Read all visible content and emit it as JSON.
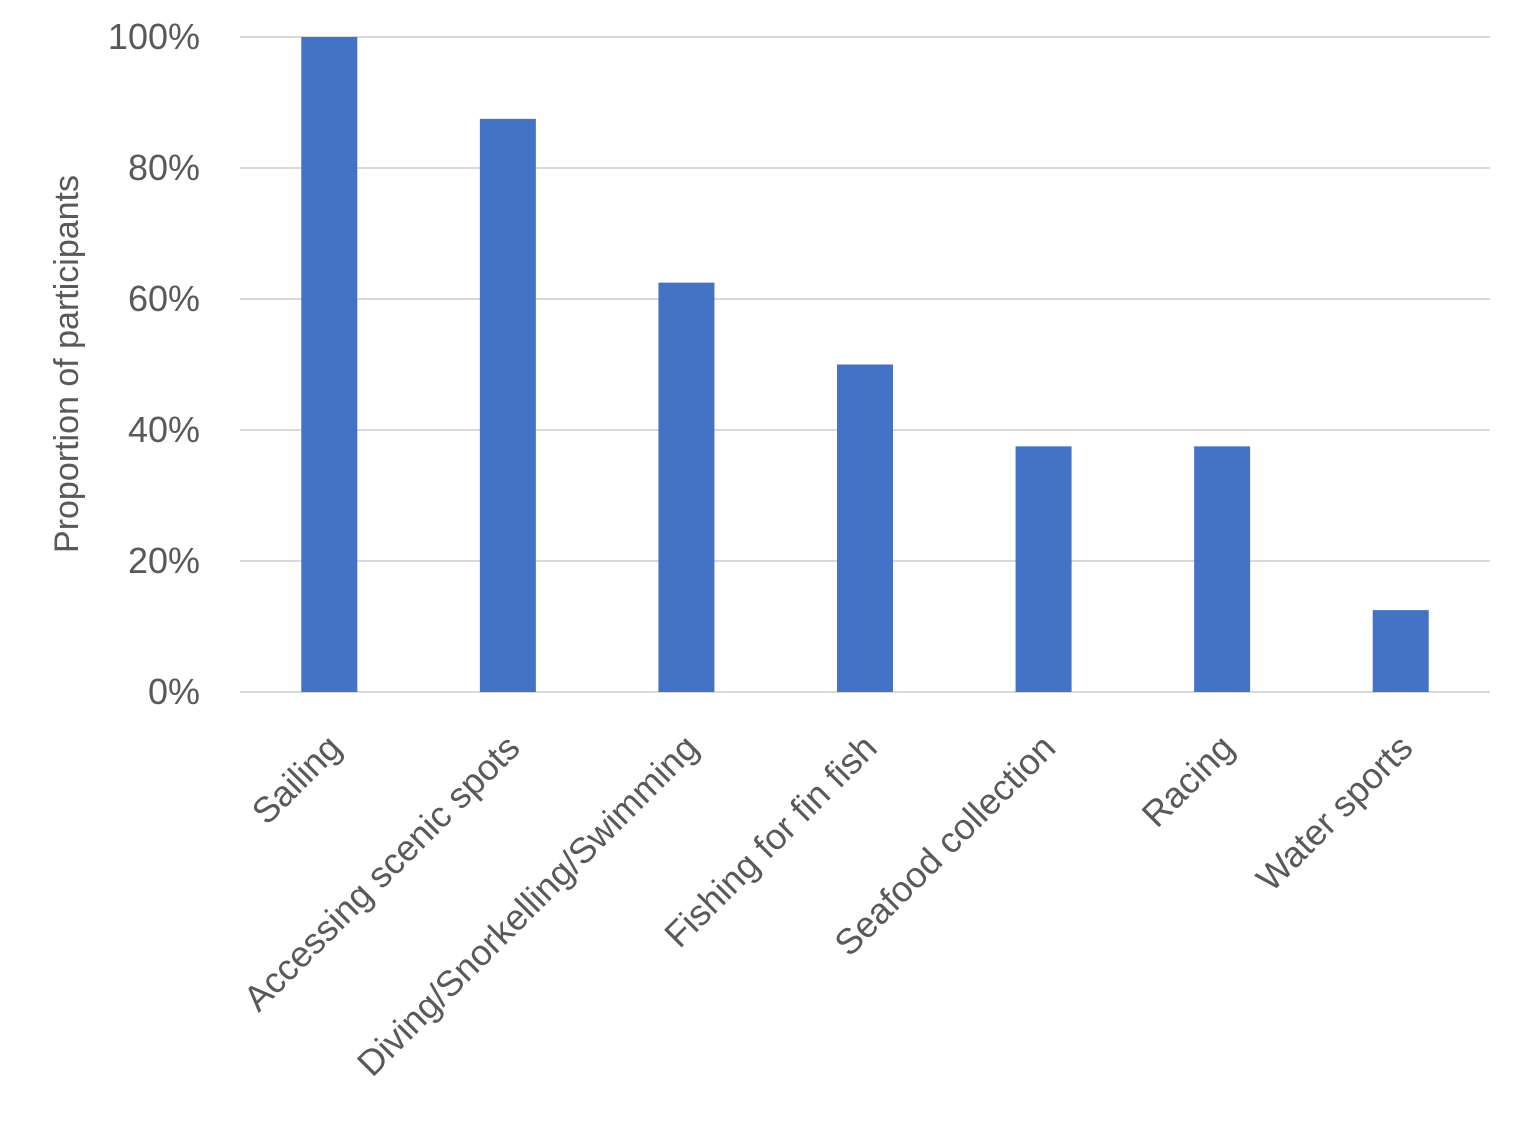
{
  "chart_data": {
    "type": "bar",
    "categories": [
      "Sailing",
      "Accessing scenic spots",
      "Diving/Snorkelling/Swimming",
      "Fishing for fin fish",
      "Seafood collection",
      "Racing",
      "Water sports"
    ],
    "values": [
      100,
      87.5,
      62.5,
      50,
      37.5,
      37.5,
      12.5
    ],
    "ylabel": "Proportion of participants",
    "xlabel": "",
    "ylim": [
      0,
      100
    ],
    "yticks": [
      "0%",
      "20%",
      "40%",
      "60%",
      "80%",
      "100%"
    ],
    "grid": "horizontal",
    "legend": "none",
    "colors": {
      "bar": "#4472C4",
      "grid": "#D9D9D9",
      "text": "#595959"
    }
  }
}
